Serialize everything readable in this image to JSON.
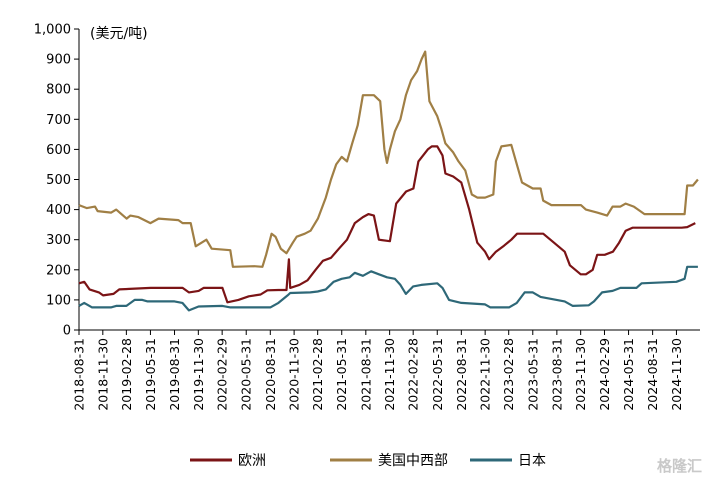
{
  "chart_data": {
    "type": "line",
    "title": "",
    "unit_label": "(美元/吨)",
    "ylim": [
      0,
      1000
    ],
    "yticks": [
      "0",
      "100",
      "200",
      "300",
      "400",
      "500",
      "600",
      "700",
      "800",
      "900",
      "1,000"
    ],
    "xlim": [
      "2018-08-31",
      "2025-02-28"
    ],
    "xticks": [
      "2018-08-31",
      "2018-11-30",
      "2019-02-28",
      "2019-05-31",
      "2019-08-31",
      "2019-11-30",
      "2020-02-29",
      "2020-05-31",
      "2020-08-31",
      "2020-11-30",
      "2021-02-28",
      "2021-05-31",
      "2021-08-31",
      "2021-11-30",
      "2022-02-28",
      "2022-05-31",
      "2022-08-31",
      "2022-11-30",
      "2023-02-28",
      "2023-05-31",
      "2023-08-31",
      "2023-11-30",
      "2024-02-29",
      "2024-05-31",
      "2024-08-31",
      "2024-11-30"
    ],
    "legend_position": "bottom",
    "series": [
      {
        "name": "欧洲",
        "color": "#7b1416",
        "points": [
          [
            "2018-08-31",
            155
          ],
          [
            "2018-09-20",
            160
          ],
          [
            "2018-10-10",
            135
          ],
          [
            "2018-11-15",
            125
          ],
          [
            "2018-12-01",
            115
          ],
          [
            "2019-01-10",
            120
          ],
          [
            "2019-02-01",
            135
          ],
          [
            "2019-06-01",
            140
          ],
          [
            "2019-10-01",
            140
          ],
          [
            "2019-10-25",
            125
          ],
          [
            "2019-12-01",
            130
          ],
          [
            "2019-12-20",
            140
          ],
          [
            "2020-03-01",
            140
          ],
          [
            "2020-03-20",
            92
          ],
          [
            "2020-05-01",
            100
          ],
          [
            "2020-06-10",
            112
          ],
          [
            "2020-07-25",
            118
          ],
          [
            "2020-08-20",
            132
          ],
          [
            "2020-10-01",
            133
          ],
          [
            "2020-11-01",
            133
          ],
          [
            "2020-11-10",
            235
          ],
          [
            "2020-11-15",
            140
          ],
          [
            "2020-12-20",
            150
          ],
          [
            "2021-01-20",
            165
          ],
          [
            "2021-02-20",
            200
          ],
          [
            "2021-03-20",
            230
          ],
          [
            "2021-04-20",
            240
          ],
          [
            "2021-05-20",
            270
          ],
          [
            "2021-06-20",
            300
          ],
          [
            "2021-07-20",
            355
          ],
          [
            "2021-08-20",
            375
          ],
          [
            "2021-09-10",
            385
          ],
          [
            "2021-10-01",
            380
          ],
          [
            "2021-10-20",
            300
          ],
          [
            "2021-12-01",
            295
          ],
          [
            "2021-12-25",
            420
          ],
          [
            "2022-02-01",
            460
          ],
          [
            "2022-03-01",
            470
          ],
          [
            "2022-03-20",
            560
          ],
          [
            "2022-04-25",
            600
          ],
          [
            "2022-05-10",
            610
          ],
          [
            "2022-05-31",
            610
          ],
          [
            "2022-06-20",
            580
          ],
          [
            "2022-07-01",
            520
          ],
          [
            "2022-07-31",
            510
          ],
          [
            "2022-08-31",
            490
          ],
          [
            "2022-09-30",
            400
          ],
          [
            "2022-10-31",
            290
          ],
          [
            "2022-11-30",
            260
          ],
          [
            "2022-12-15",
            235
          ],
          [
            "2023-01-10",
            260
          ],
          [
            "2023-02-10",
            280
          ],
          [
            "2023-03-10",
            300
          ],
          [
            "2023-04-01",
            320
          ],
          [
            "2023-07-10",
            320
          ],
          [
            "2023-08-20",
            290
          ],
          [
            "2023-09-30",
            260
          ],
          [
            "2023-10-20",
            215
          ],
          [
            "2023-11-30",
            185
          ],
          [
            "2023-12-20",
            185
          ],
          [
            "2024-01-15",
            200
          ],
          [
            "2024-02-01",
            250
          ],
          [
            "2024-03-01",
            250
          ],
          [
            "2024-04-01",
            260
          ],
          [
            "2024-04-25",
            290
          ],
          [
            "2024-05-20",
            330
          ],
          [
            "2024-06-15",
            340
          ],
          [
            "2024-12-20",
            340
          ],
          [
            "2025-01-10",
            342
          ],
          [
            "2025-02-10",
            355
          ]
        ]
      },
      {
        "name": "美国中西部",
        "color": "#a07f45",
        "points": [
          [
            "2018-08-31",
            415
          ],
          [
            "2018-09-30",
            405
          ],
          [
            "2018-10-31",
            410
          ],
          [
            "2018-11-10",
            395
          ],
          [
            "2019-01-01",
            390
          ],
          [
            "2019-01-20",
            400
          ],
          [
            "2019-03-01",
            370
          ],
          [
            "2019-03-15",
            380
          ],
          [
            "2019-04-15",
            375
          ],
          [
            "2019-05-31",
            355
          ],
          [
            "2019-07-01",
            370
          ],
          [
            "2019-09-15",
            365
          ],
          [
            "2019-10-01",
            355
          ],
          [
            "2019-11-01",
            355
          ],
          [
            "2019-11-20",
            278
          ],
          [
            "2019-12-31",
            300
          ],
          [
            "2020-01-20",
            270
          ],
          [
            "2020-03-31",
            265
          ],
          [
            "2020-04-10",
            210
          ],
          [
            "2020-07-01",
            212
          ],
          [
            "2020-08-01",
            210
          ],
          [
            "2020-08-15",
            250
          ],
          [
            "2020-09-05",
            320
          ],
          [
            "2020-09-20",
            310
          ],
          [
            "2020-10-10",
            270
          ],
          [
            "2020-11-01",
            255
          ],
          [
            "2020-11-25",
            290
          ],
          [
            "2020-12-10",
            310
          ],
          [
            "2021-01-10",
            320
          ],
          [
            "2021-02-01",
            330
          ],
          [
            "2021-03-01",
            370
          ],
          [
            "2021-03-31",
            440
          ],
          [
            "2021-04-20",
            500
          ],
          [
            "2021-05-10",
            550
          ],
          [
            "2021-05-31",
            575
          ],
          [
            "2021-06-20",
            560
          ],
          [
            "2021-07-10",
            620
          ],
          [
            "2021-07-31",
            680
          ],
          [
            "2021-08-20",
            780
          ],
          [
            "2021-10-01",
            780
          ],
          [
            "2021-10-25",
            760
          ],
          [
            "2021-11-10",
            600
          ],
          [
            "2021-11-20",
            555
          ],
          [
            "2021-12-01",
            600
          ],
          [
            "2021-12-20",
            660
          ],
          [
            "2022-01-10",
            700
          ],
          [
            "2022-01-31",
            780
          ],
          [
            "2022-02-20",
            830
          ],
          [
            "2022-03-15",
            860
          ],
          [
            "2022-04-01",
            900
          ],
          [
            "2022-04-15",
            925
          ],
          [
            "2022-05-01",
            760
          ],
          [
            "2022-05-31",
            710
          ],
          [
            "2022-06-15",
            670
          ],
          [
            "2022-07-01",
            620
          ],
          [
            "2022-07-31",
            590
          ],
          [
            "2022-08-20",
            560
          ],
          [
            "2022-09-15",
            530
          ],
          [
            "2022-10-10",
            450
          ],
          [
            "2022-10-31",
            440
          ],
          [
            "2022-11-30",
            440
          ],
          [
            "2022-12-31",
            450
          ],
          [
            "2023-01-10",
            560
          ],
          [
            "2023-01-31",
            610
          ],
          [
            "2023-03-10",
            615
          ],
          [
            "2023-04-20",
            490
          ],
          [
            "2023-05-31",
            470
          ],
          [
            "2023-06-30",
            470
          ],
          [
            "2023-07-10",
            430
          ],
          [
            "2023-08-10",
            415
          ],
          [
            "2023-12-01",
            415
          ],
          [
            "2023-12-20",
            400
          ],
          [
            "2024-02-01",
            390
          ],
          [
            "2024-03-10",
            380
          ],
          [
            "2024-03-31",
            410
          ],
          [
            "2024-04-30",
            410
          ],
          [
            "2024-05-20",
            420
          ],
          [
            "2024-06-20",
            410
          ],
          [
            "2024-07-31",
            385
          ],
          [
            "2024-12-31",
            385
          ],
          [
            "2025-01-10",
            480
          ],
          [
            "2025-02-01",
            480
          ],
          [
            "2025-02-20",
            500
          ]
        ]
      },
      {
        "name": "日本",
        "color": "#2e6878",
        "points": [
          [
            "2018-08-31",
            80
          ],
          [
            "2018-09-20",
            90
          ],
          [
            "2018-10-20",
            75
          ],
          [
            "2018-12-31",
            75
          ],
          [
            "2019-01-20",
            80
          ],
          [
            "2019-02-28",
            80
          ],
          [
            "2019-04-01",
            100
          ],
          [
            "2019-04-30",
            100
          ],
          [
            "2019-05-20",
            95
          ],
          [
            "2019-08-31",
            95
          ],
          [
            "2019-09-30",
            90
          ],
          [
            "2019-10-25",
            65
          ],
          [
            "2019-12-01",
            78
          ],
          [
            "2020-03-01",
            80
          ],
          [
            "2020-04-01",
            75
          ],
          [
            "2020-08-31",
            75
          ],
          [
            "2020-10-01",
            90
          ],
          [
            "2020-11-05",
            115
          ],
          [
            "2020-11-15",
            123
          ],
          [
            "2021-01-31",
            125
          ],
          [
            "2021-02-28",
            128
          ],
          [
            "2021-03-31",
            135
          ],
          [
            "2021-04-30",
            160
          ],
          [
            "2021-05-31",
            170
          ],
          [
            "2021-06-30",
            175
          ],
          [
            "2021-07-20",
            190
          ],
          [
            "2021-08-20",
            180
          ],
          [
            "2021-09-20",
            195
          ],
          [
            "2021-10-20",
            185
          ],
          [
            "2021-11-20",
            175
          ],
          [
            "2021-12-20",
            170
          ],
          [
            "2022-01-10",
            150
          ],
          [
            "2022-01-31",
            120
          ],
          [
            "2022-02-28",
            145
          ],
          [
            "2022-03-31",
            150
          ],
          [
            "2022-05-31",
            155
          ],
          [
            "2022-06-20",
            140
          ],
          [
            "2022-07-15",
            100
          ],
          [
            "2022-08-31",
            90
          ],
          [
            "2022-11-30",
            85
          ],
          [
            "2022-12-20",
            75
          ],
          [
            "2023-03-01",
            75
          ],
          [
            "2023-03-31",
            90
          ],
          [
            "2023-04-30",
            125
          ],
          [
            "2023-05-31",
            125
          ],
          [
            "2023-06-30",
            110
          ],
          [
            "2023-09-30",
            95
          ],
          [
            "2023-10-31",
            80
          ],
          [
            "2023-12-31",
            82
          ],
          [
            "2024-01-20",
            95
          ],
          [
            "2024-02-20",
            125
          ],
          [
            "2024-03-31",
            130
          ],
          [
            "2024-04-30",
            140
          ],
          [
            "2024-06-30",
            140
          ],
          [
            "2024-07-20",
            155
          ],
          [
            "2024-11-30",
            160
          ],
          [
            "2024-12-31",
            170
          ],
          [
            "2025-01-10",
            210
          ],
          [
            "2025-02-20",
            210
          ]
        ]
      }
    ]
  },
  "watermark": "格隆汇"
}
